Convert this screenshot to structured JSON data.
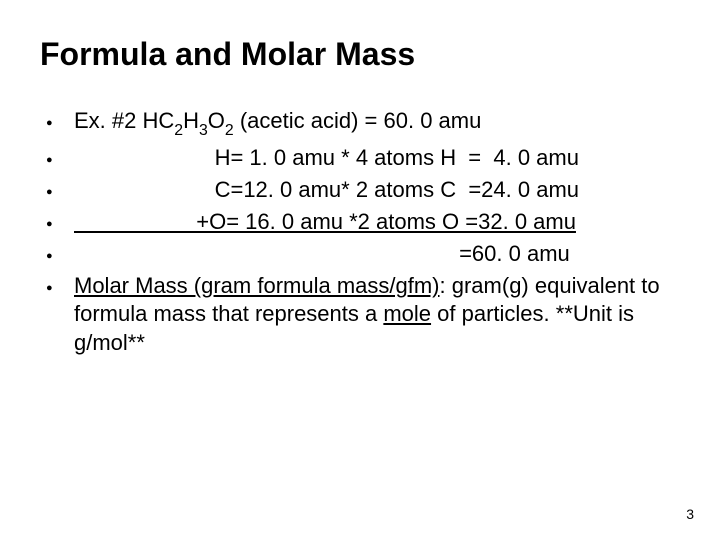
{
  "title": "Formula and Molar Mass",
  "bullet_glyph": "●",
  "bullet_color": "#000000",
  "text_color": "#000000",
  "background_color": "#ffffff",
  "title_fontsize": 32,
  "body_fontsize": 22,
  "lines": {
    "l1_prefix": "Ex. #2 HC",
    "l1_s1": "2",
    "l1_m1": "H",
    "l1_s2": "3",
    "l1_m2": "O",
    "l1_s3": "2",
    "l1_suffix": " (acetic acid) = 60. 0 amu",
    "l2": "                       H= 1. 0 amu * 4 atoms H  =  4. 0 amu",
    "l3": "                       C=12. 0 amu* 2 atoms C  =24. 0 amu",
    "l4_a": "                    +O= 16. 0 amu *2 atoms O =32. 0 amu",
    "l5": "                                                               =60. 0 amu",
    "l6_a": "Molar Mass (gram formula mass/gfm)",
    "l6_b": ": gram(g) equivalent to formula mass that represents a ",
    "l6_c": "mole",
    "l6_d": " of particles.  **Unit is g/mol**"
  },
  "page_number": "3"
}
